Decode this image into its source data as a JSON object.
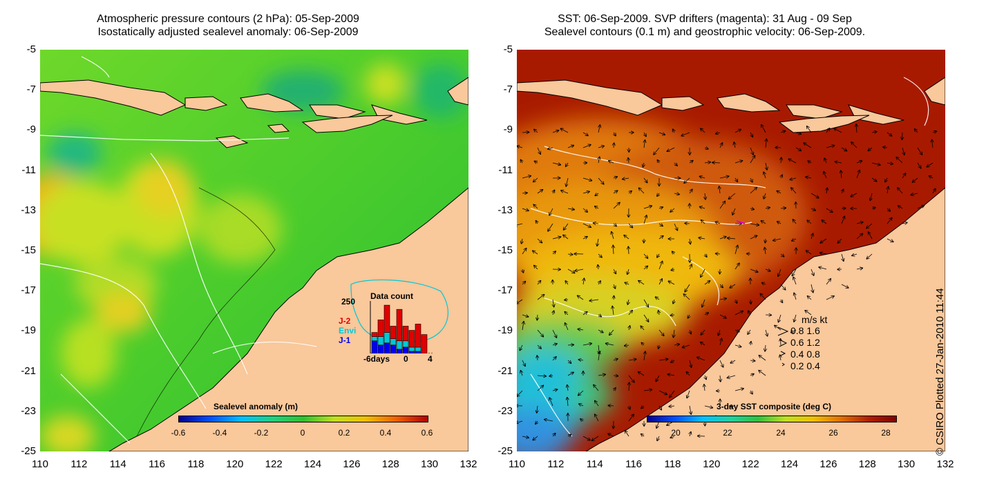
{
  "left_panel": {
    "title_line1": "Atmospheric pressure contours (2 hPa): 05-Sep-2009",
    "title_line2": "Isostatically adjusted sealevel anomaly: 06-Sep-2009",
    "colorbar": {
      "title": "Sealevel anomaly (m)",
      "ticks": [
        "-0.6",
        "-0.4",
        "-0.2",
        "0",
        "0.2",
        "0.4",
        "0.6"
      ]
    },
    "data_count": {
      "title": "Data count",
      "ymax_label": "250",
      "series": [
        {
          "name": "J-2",
          "color": "#e00000"
        },
        {
          "name": "Envi",
          "color": "#00c8d8"
        },
        {
          "name": "J-1",
          "color": "#0000ee"
        }
      ],
      "x_labels": [
        "-6days",
        "0",
        "4"
      ],
      "bars": [
        {
          "j1": 60,
          "envi": 20,
          "j2": 20
        },
        {
          "j1": 40,
          "envi": 40,
          "j2": 80
        },
        {
          "j1": 50,
          "envi": 50,
          "j2": 130
        },
        {
          "j1": 40,
          "envi": 30,
          "j2": 60
        },
        {
          "j1": 20,
          "envi": 40,
          "j2": 150
        },
        {
          "j1": 30,
          "envi": 30,
          "j2": 70
        },
        {
          "j1": 10,
          "envi": 20,
          "j2": 80
        },
        {
          "j1": 10,
          "envi": 20,
          "j2": 110
        },
        {
          "j1": 0,
          "envi": 0,
          "j2": 90
        }
      ]
    }
  },
  "right_panel": {
    "title_line1": "SST: 06-Sep-2009. SVP drifters (magenta): 31 Aug - 09 Sep",
    "title_line2": "Sealevel contours (0.1 m) and geostrophic velocity: 06-Sep-2009.",
    "colorbar": {
      "title": "3-day SST composite (deg C)",
      "ticks": [
        "20",
        "22",
        "24",
        "26",
        "28"
      ]
    },
    "speed_legend": {
      "header": "m/s  kt",
      "rows": [
        "0.8  1.6",
        "0.6  1.2",
        "0.4  0.8",
        "0.2  0.4"
      ]
    }
  },
  "axes": {
    "lat_ticks": [
      "-5",
      "-7",
      "-9",
      "-11",
      "-13",
      "-15",
      "-17",
      "-19",
      "-21",
      "-23",
      "-25"
    ],
    "lon_ticks": [
      "110",
      "112",
      "114",
      "116",
      "118",
      "120",
      "122",
      "124",
      "126",
      "128",
      "130",
      "132"
    ]
  },
  "credit": "© CSIRO Plotted 27-Jan-2010 11:44",
  "colors": {
    "land": "#f9c89b",
    "sla_green": "#2fc42a",
    "sla_yellow": "#c9e22a",
    "sst_red": "#a81a00",
    "sst_orange": "#dc7810",
    "sst_yellow": "#f0c010",
    "sst_cyan": "#20c0d8"
  }
}
